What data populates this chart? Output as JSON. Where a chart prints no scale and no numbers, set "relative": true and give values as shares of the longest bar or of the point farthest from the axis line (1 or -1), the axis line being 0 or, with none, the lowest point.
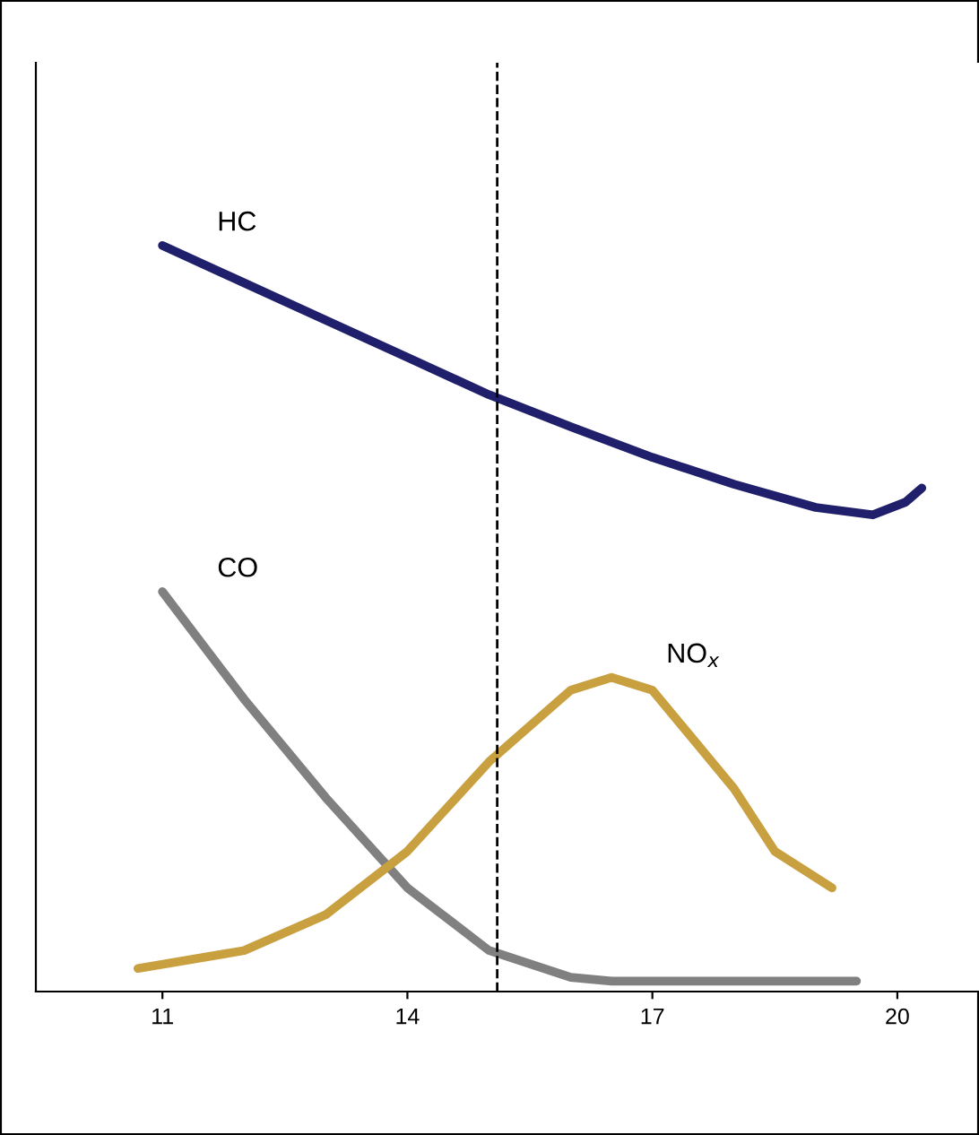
{
  "chart_data": {
    "type": "line",
    "relative": true,
    "tick_labels": "x",
    "xlim": [
      9.45,
      21.0
    ],
    "xticks": [
      11,
      14,
      17,
      20
    ],
    "grid": false,
    "legend": false,
    "line_style": "solid",
    "marker": "none",
    "series": [
      {
        "name": "HC",
        "color": "#1f1f6b",
        "x": [
          11,
          12,
          13,
          14,
          15,
          16,
          17,
          18,
          19,
          19.7,
          20.1,
          20.3
        ],
        "values": [
          1.0,
          0.95,
          0.9,
          0.85,
          0.8,
          0.757,
          0.716,
          0.68,
          0.649,
          0.639,
          0.656,
          0.675
        ]
      },
      {
        "name": "CO",
        "color": "#808080",
        "x": [
          11,
          12,
          13,
          14,
          15,
          16,
          16.5,
          19.5
        ],
        "values": [
          0.536,
          0.392,
          0.26,
          0.139,
          0.055,
          0.019,
          0.014,
          0.014
        ]
      },
      {
        "name": "NO$_{x}$",
        "color": "#c8a040",
        "x": [
          10.7,
          12,
          13,
          14,
          15,
          16,
          16.5,
          17,
          18,
          18.5,
          19.2
        ],
        "values": [
          0.031,
          0.055,
          0.103,
          0.188,
          0.308,
          0.404,
          0.421,
          0.404,
          0.272,
          0.188,
          0.139
        ]
      }
    ],
    "ref_lines": [
      {
        "axis": "x",
        "value": 15.1,
        "label": null,
        "color": "#000000",
        "line_style": "dashed"
      }
    ]
  }
}
